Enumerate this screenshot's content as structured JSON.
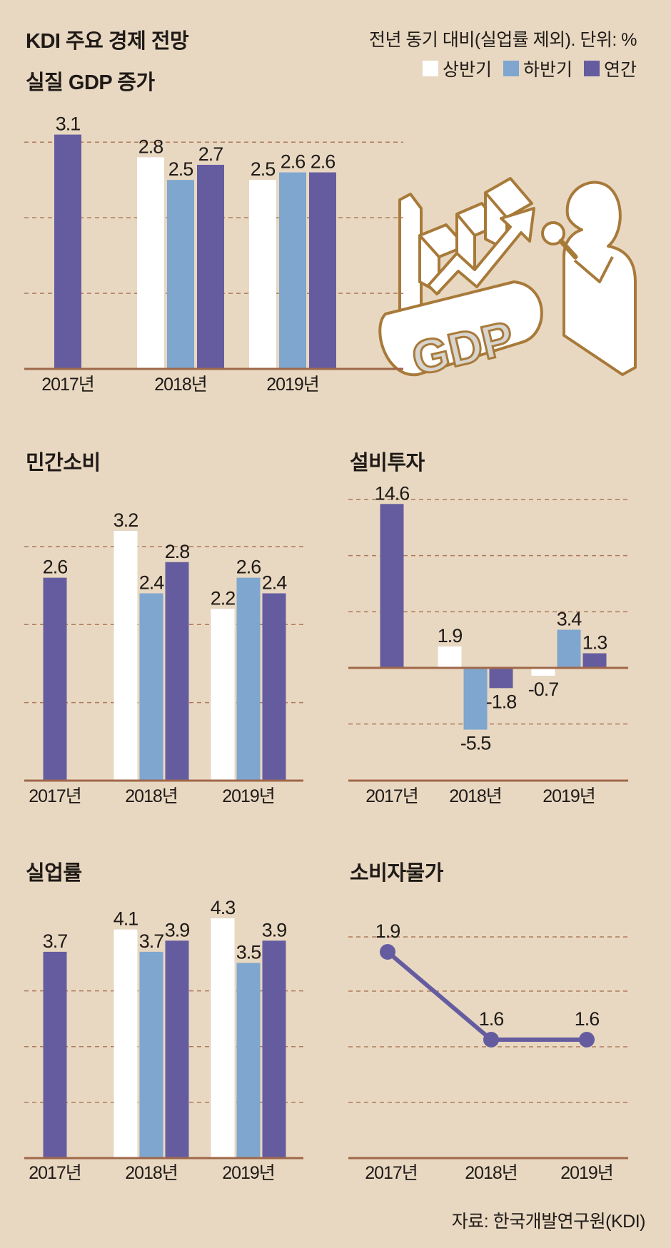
{
  "header": {
    "title": "KDI 주요 경제 전망",
    "note": "전년 동기 대비(실업률 제외). 단위: %",
    "source": "자료: 한국개발연구원(KDI)"
  },
  "legend": [
    {
      "label": "상반기",
      "color": "#ffffff"
    },
    {
      "label": "하반기",
      "color": "#7ea6cf"
    },
    {
      "label": "연간",
      "color": "#655ca0"
    }
  ],
  "colors": {
    "background": "#e8d8c1",
    "axis": "#a0674a",
    "grid": "#b07a5c",
    "line": "#655ca0",
    "illustration_stroke": "#a87a3a"
  },
  "illustration": {
    "word": "GDP"
  },
  "chart_data": [
    {
      "id": "gdp",
      "title": "실질 GDP 증가",
      "type": "bar",
      "categories": [
        "2017년",
        "2018년",
        "2019년"
      ],
      "bars": [
        [
          {
            "series": "연간",
            "value": 3.1,
            "label": "3.1"
          }
        ],
        [
          {
            "series": "상반기",
            "value": 2.8,
            "label": "2.8"
          },
          {
            "series": "하반기",
            "value": 2.5,
            "label": "2.5"
          },
          {
            "series": "연간",
            "value": 2.7,
            "label": "2.7"
          }
        ],
        [
          {
            "series": "상반기",
            "value": 2.5,
            "label": "2.5"
          },
          {
            "series": "하반기",
            "value": 2.6,
            "label": "2.6"
          },
          {
            "series": "연간",
            "value": 2.6,
            "label": "2.6"
          }
        ]
      ],
      "ylim": [
        0,
        3.2
      ]
    },
    {
      "id": "consumption",
      "title": "민간소비",
      "type": "bar",
      "categories": [
        "2017년",
        "2018년",
        "2019년"
      ],
      "bars": [
        [
          {
            "series": "연간",
            "value": 2.6,
            "label": "2.6"
          }
        ],
        [
          {
            "series": "상반기",
            "value": 3.2,
            "label": "3.2"
          },
          {
            "series": "하반기",
            "value": 2.4,
            "label": "2.4"
          },
          {
            "series": "연간",
            "value": 2.8,
            "label": "2.8"
          }
        ],
        [
          {
            "series": "상반기",
            "value": 2.2,
            "label": "2.2"
          },
          {
            "series": "하반기",
            "value": 2.6,
            "label": "2.6"
          },
          {
            "series": "연간",
            "value": 2.4,
            "label": "2.4"
          }
        ]
      ],
      "ylim": [
        0,
        3.2
      ]
    },
    {
      "id": "investment",
      "title": "설비투자",
      "type": "bar",
      "categories": [
        "2017년",
        "2018년",
        "2019년"
      ],
      "bars": [
        [
          {
            "series": "연간",
            "value": 14.6,
            "label": "14.6"
          }
        ],
        [
          {
            "series": "상반기",
            "value": 1.9,
            "label": "1.9"
          },
          {
            "series": "하반기",
            "value": -5.5,
            "label": "-5.5"
          },
          {
            "series": "연간",
            "value": -1.8,
            "label": "-1.8"
          }
        ],
        [
          {
            "series": "상반기",
            "value": -0.7,
            "label": "-0.7"
          },
          {
            "series": "하반기",
            "value": 3.4,
            "label": "3.4"
          },
          {
            "series": "연간",
            "value": 1.3,
            "label": "1.3"
          }
        ]
      ],
      "ylim": [
        -10,
        15
      ]
    },
    {
      "id": "unemployment",
      "title": "실업률",
      "type": "bar",
      "categories": [
        "2017년",
        "2018년",
        "2019년"
      ],
      "bars": [
        [
          {
            "series": "연간",
            "value": 3.7,
            "label": "3.7"
          }
        ],
        [
          {
            "series": "상반기",
            "value": 4.1,
            "label": "4.1"
          },
          {
            "series": "하반기",
            "value": 3.7,
            "label": "3.7"
          },
          {
            "series": "연간",
            "value": 3.9,
            "label": "3.9"
          }
        ],
        [
          {
            "series": "상반기",
            "value": 4.3,
            "label": "4.3"
          },
          {
            "series": "하반기",
            "value": 3.5,
            "label": "3.5"
          },
          {
            "series": "연간",
            "value": 3.9,
            "label": "3.9"
          }
        ]
      ],
      "ylim": [
        0,
        4.3
      ]
    },
    {
      "id": "cpi",
      "title": "소비자물가",
      "type": "line",
      "categories": [
        "2017년",
        "2018년",
        "2019년"
      ],
      "values": [
        1.9,
        1.6,
        1.6
      ],
      "labels": [
        "1.9",
        "1.6",
        "1.6"
      ],
      "ylim": [
        1.0,
        2.0
      ]
    }
  ]
}
